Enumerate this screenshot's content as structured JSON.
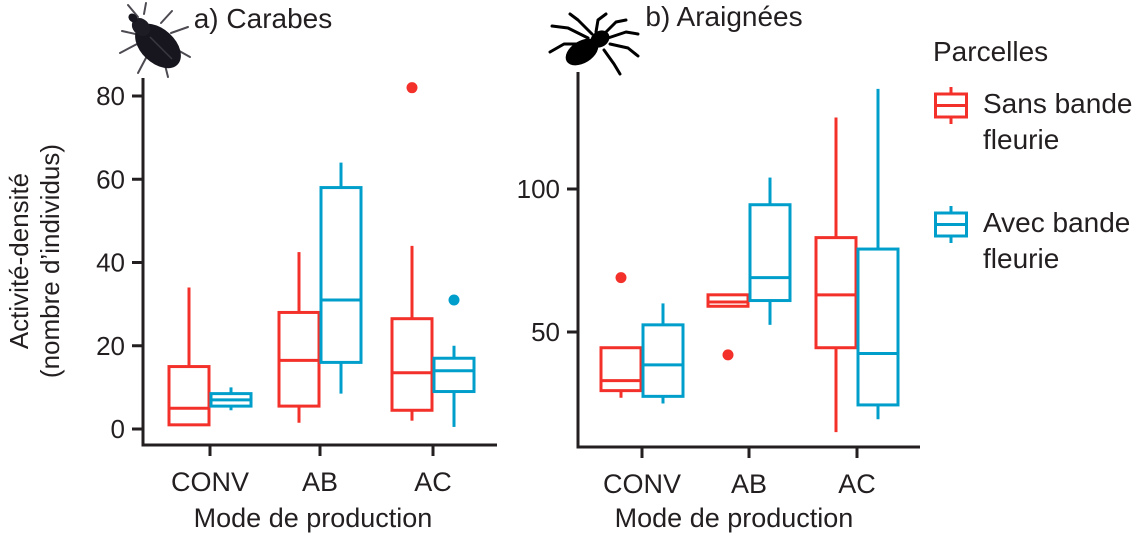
{
  "figure": {
    "background": "#ffffff",
    "text_color": "#231f20"
  },
  "panels": [
    {
      "id": "a",
      "title": "a) Carabes",
      "icon": "beetle-icon",
      "ylabel_line1": "Activité-densité",
      "ylabel_line2": "(nombre d’individus)",
      "xlabel": "Mode de production",
      "x_categories": [
        "CONV",
        "AB",
        "AC"
      ],
      "y_ticks": [
        0,
        20,
        40,
        60,
        80
      ]
    },
    {
      "id": "b",
      "title": "b) Araignées",
      "icon": "spider-icon",
      "xlabel": "Mode de production",
      "x_categories": [
        "CONV",
        "AB",
        "AC"
      ],
      "y_ticks": [
        50,
        100
      ]
    }
  ],
  "legend": {
    "title": "Parcelles",
    "items": [
      {
        "label_line1": "Sans bande",
        "label_line2": "fleurie",
        "color": "#f3312a"
      },
      {
        "label_line1": "Avec bande",
        "label_line2": "fleurie",
        "color": "#009fcb"
      }
    ]
  },
  "chart_data": [
    {
      "type": "boxplot",
      "title": "a) Carabes",
      "xlabel": "Mode de production",
      "ylabel": "Activité-densité (nombre d’individus)",
      "categories": [
        "CONV",
        "AB",
        "AC"
      ],
      "y_ticks": [
        0,
        20,
        40,
        60,
        80
      ],
      "ylim": [
        -2,
        85
      ],
      "grid": false,
      "legend_position": "right",
      "series": [
        {
          "name": "Sans bande fleurie",
          "color": "#f3312a",
          "boxes": [
            {
              "category": "CONV",
              "whisker_low": 1,
              "q1": 1,
              "median": 5,
              "q3": 15,
              "whisker_high": 34,
              "outliers": []
            },
            {
              "category": "AB",
              "whisker_low": 1.5,
              "q1": 5.5,
              "median": 16.5,
              "q3": 28,
              "whisker_high": 42.5,
              "outliers": []
            },
            {
              "category": "AC",
              "whisker_low": 2,
              "q1": 4.5,
              "median": 13.5,
              "q3": 26.5,
              "whisker_high": 44,
              "outliers": [
                82
              ]
            }
          ]
        },
        {
          "name": "Avec bande fleurie",
          "color": "#009fcb",
          "boxes": [
            {
              "category": "CONV",
              "whisker_low": 4.5,
              "q1": 5.5,
              "median": 7,
              "q3": 8.5,
              "whisker_high": 10,
              "outliers": []
            },
            {
              "category": "AB",
              "whisker_low": 8.5,
              "q1": 16,
              "median": 31,
              "q3": 58,
              "whisker_high": 64,
              "outliers": []
            },
            {
              "category": "AC",
              "whisker_low": 0.5,
              "q1": 9,
              "median": 14,
              "q3": 17,
              "whisker_high": 20,
              "outliers": [
                31
              ]
            }
          ]
        }
      ]
    },
    {
      "type": "boxplot",
      "title": "b) Araignées",
      "xlabel": "Mode de production",
      "ylabel": "",
      "categories": [
        "CONV",
        "AB",
        "AC"
      ],
      "y_ticks": [
        50,
        100
      ],
      "ylim": [
        8,
        140
      ],
      "grid": false,
      "legend_position": "right",
      "series": [
        {
          "name": "Sans bande fleurie",
          "color": "#f3312a",
          "boxes": [
            {
              "category": "CONV",
              "whisker_low": 27,
              "q1": 29.5,
              "median": 33,
              "q3": 44.5,
              "whisker_high": 44.5,
              "outliers": [
                69
              ]
            },
            {
              "category": "AB",
              "whisker_low": 59,
              "q1": 59,
              "median": 60.5,
              "q3": 63,
              "whisker_high": 63,
              "outliers": [
                42
              ]
            },
            {
              "category": "AC",
              "whisker_low": 15,
              "q1": 44.5,
              "median": 63,
              "q3": 83,
              "whisker_high": 125,
              "outliers": []
            }
          ]
        },
        {
          "name": "Avec bande fleurie",
          "color": "#009fcb",
          "boxes": [
            {
              "category": "CONV",
              "whisker_low": 25,
              "q1": 27.5,
              "median": 38.5,
              "q3": 52.5,
              "whisker_high": 60,
              "outliers": []
            },
            {
              "category": "AB",
              "whisker_low": 52.5,
              "q1": 61,
              "median": 69,
              "q3": 94.5,
              "whisker_high": 104,
              "outliers": []
            },
            {
              "category": "AC",
              "whisker_low": 19.5,
              "q1": 24.5,
              "median": 42.5,
              "q3": 79,
              "whisker_high": 135,
              "outliers": []
            }
          ]
        }
      ]
    }
  ]
}
